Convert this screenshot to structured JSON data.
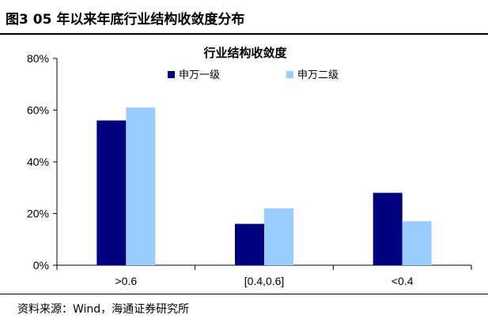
{
  "figure": {
    "title": "图3  05 年以来年底行业结构收敛度分布",
    "source": "资料来源：Wind，海通证券研究所"
  },
  "colors": {
    "series_1": "#00007f",
    "series_2": "#99ccff",
    "axis": "#000000"
  },
  "chart_data": {
    "type": "bar",
    "title": "行业结构收敛度",
    "xlabel": "",
    "ylabel": "",
    "categories": [
      ">0.6",
      "[0.4,0.6]",
      "<0.4"
    ],
    "series": [
      {
        "name": "申万一级",
        "values": [
          56,
          16,
          28
        ]
      },
      {
        "name": "申万二级",
        "values": [
          61,
          22,
          17
        ]
      }
    ],
    "ylim": [
      0,
      80
    ],
    "yticks": [
      0,
      20,
      40,
      60,
      80
    ],
    "ytick_labels": [
      "0%",
      "20%",
      "40%",
      "60%",
      "80%"
    ],
    "grid": false,
    "legend_position": "top-right"
  }
}
